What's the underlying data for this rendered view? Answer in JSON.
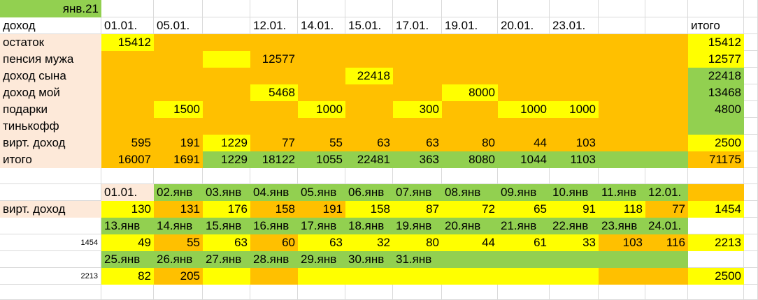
{
  "cells": {
    "A1": "янв.21",
    "A2": "доход",
    "B2": "01.01.",
    "C2": "05.01.",
    "E2": "12.01.",
    "F2": "14.01.",
    "G2": "15.01.",
    "H2": "17.01.",
    "I2": "19.01.",
    "J2": "20.01.",
    "K2": "23.01.",
    "N2": "итого",
    "A3": "остаток",
    "B3": 15412,
    "N3": 15412,
    "A4": "пенсия мужа",
    "E4": 12577,
    "N4": 12577,
    "A5": "доход сына",
    "G5": 22418,
    "N5": 22418,
    "A6": "доход мой",
    "E6": 5468,
    "I6": 8000,
    "N6": 13468,
    "A7": "подарки",
    "C7": 1500,
    "F7": 1000,
    "H7": 300,
    "J7": 1000,
    "K7": 1000,
    "N7": 4800,
    "A8": "тинькофф",
    "A9": "вирт. доход",
    "B9": 595,
    "C9": 191,
    "D9": 1229,
    "E9": 77,
    "F9": 55,
    "G9": 63,
    "H9": 63,
    "I9": 80,
    "J9": 44,
    "K9": 103,
    "N9": 2500,
    "A10": "итого",
    "B10": 16007,
    "C10": 1691,
    "D10": 1229,
    "E10": 18122,
    "F10": 1055,
    "G10": 22481,
    "H10": 363,
    "I10": 8080,
    "J10": 1044,
    "K10": 1103,
    "N10": 71175,
    "B12": "01.01.",
    "C12": "02.янв",
    "D12": "03.янв",
    "E12": "04.янв",
    "F12": "05.янв",
    "G12": "06.янв",
    "H12": "07.янв",
    "I12": "08.янв",
    "J12": "09.янв",
    "K12": "10.янв",
    "L12": "11.янв",
    "M12": "12.01.",
    "A13": "вирт. доход",
    "B13": 130,
    "C13": 131,
    "D13": 176,
    "E13": 158,
    "F13": 191,
    "G13": 158,
    "H13": 87,
    "I13": 72,
    "J13": 65,
    "K13": 91,
    "L13": 118,
    "M13": 77,
    "N13": 1454,
    "B14": "13.янв",
    "C14": "14.янв",
    "D14": "15.янв",
    "E14": "16.янв",
    "F14": "17.янв",
    "G14": "18.янв",
    "H14": "19.янв",
    "I14": "20.янв",
    "J14": "21.янв",
    "K14": "22.янв",
    "L14": "23.янв",
    "M14": "24.01.",
    "A15": 1454,
    "B15": 49,
    "C15": 55,
    "D15": 63,
    "E15": 60,
    "F15": 63,
    "G15": 32,
    "H15": 80,
    "I15": 44,
    "J15": 61,
    "K15": 33,
    "L15": 103,
    "M15": 116,
    "N15": 2213,
    "B16": "25.янв",
    "C16": "26.янв",
    "D16": "27.янв",
    "E16": "28.янв",
    "F16": "29.янв",
    "G16": "30.янв",
    "H16": "31.янв",
    "A17": 2213,
    "B17": 82,
    "C17": 205,
    "N17": 2500
  }
}
